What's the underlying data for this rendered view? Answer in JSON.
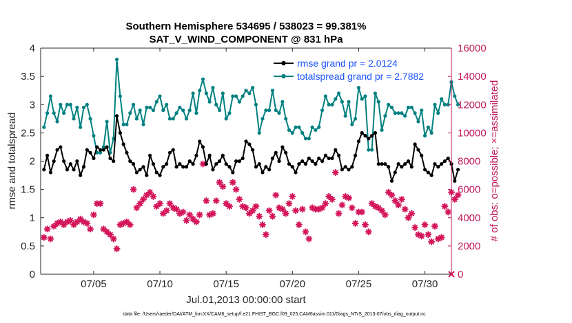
{
  "chart_data": {
    "type": "line",
    "title_line1": "Southern Hemisphere 534695 / 538023 = 99.381%",
    "title_line2": "SAT_V_WIND_COMPONENT @ 831 hPa",
    "xlabel": "Jul.01,2013 00:00:00 start",
    "ylabel_left": "rmse and totalspread",
    "ylabel_right": "# of obs: o=possible; ×=assimilated",
    "footnote": "data file: /Users/raeder/DAI/ATM_forcXX/CAM6_setup/f.e21.FHIST_BGC.f09_025.CAM6assim.011/Diags_NTrS_2013-07/obs_diag_output.nc",
    "x_ticks": [
      {
        "day": 5,
        "label": "07/05"
      },
      {
        "day": 10,
        "label": "07/10"
      },
      {
        "day": 15,
        "label": "07/15"
      },
      {
        "day": 20,
        "label": "07/20"
      },
      {
        "day": 25,
        "label": "07/25"
      },
      {
        "day": 30,
        "label": "07/30"
      }
    ],
    "xlim": [
      1,
      32
    ],
    "ylim_left": [
      0,
      4
    ],
    "yticks_left": [
      "0",
      "0.5",
      "1",
      "1.5",
      "2",
      "2.5",
      "3",
      "3.5",
      "4"
    ],
    "ylim_right": [
      0,
      16000
    ],
    "yticks_right": [
      "0",
      "2000",
      "4000",
      "6000",
      "8000",
      "10000",
      "12000",
      "14000",
      "16000"
    ],
    "colors": {
      "rmse": "#000000",
      "spread": "#008080",
      "obs": "#d4145a",
      "right_axis": "#c2185b",
      "legend_text": "#1a53ff"
    },
    "legend_position": "top-right",
    "series": [
      {
        "name": "rmse grand pr = 2.0124",
        "axis": "left",
        "x_start": 1.25,
        "x_step": 0.25,
        "values": [
          1.85,
          2.1,
          1.8,
          2.0,
          2.2,
          2.25,
          2.0,
          1.85,
          1.95,
          1.85,
          2.0,
          1.75,
          1.9,
          2.2,
          2.15,
          2.05,
          2.25,
          2.2,
          2.2,
          2.25,
          2.05,
          2.0,
          2.8,
          2.5,
          2.3,
          2.15,
          2.0,
          1.95,
          1.8,
          1.85,
          1.9,
          1.75,
          2.1,
          1.95,
          1.8,
          1.75,
          1.9,
          1.95,
          2.15,
          2.2,
          1.9,
          1.95,
          1.9,
          1.9,
          2.0,
          1.95,
          2.1,
          2.35,
          2.25,
          1.95,
          2.1,
          1.85,
          1.95,
          2.0,
          2.1,
          1.95,
          1.9,
          1.8,
          2.0,
          2.0,
          2.05,
          2.35,
          2.3,
          2.2,
          1.9,
          1.95,
          1.8,
          1.9,
          1.85,
          2.05,
          2.15,
          2.0,
          2.25,
          2.15,
          1.95,
          1.9,
          1.8,
          1.95,
          2.0,
          1.95,
          2.05,
          2.0,
          1.95,
          2.05,
          2.0,
          2.1,
          2.05,
          2.05,
          2.2,
          2.1,
          1.85,
          1.9,
          1.85,
          1.9,
          2.1,
          2.35,
          2.5,
          2.45,
          2.4,
          2.45,
          2.5,
          1.95,
          1.95,
          1.95,
          1.9,
          1.65,
          1.8,
          1.95,
          1.9,
          1.95,
          2.0,
          1.9,
          2.3,
          2.2,
          2.1,
          1.85,
          1.8,
          1.75,
          1.95,
          1.9,
          1.95,
          2.0,
          2.05,
          1.95,
          1.65,
          1.85
        ]
      },
      {
        "name": "totalspread grand pr = 2.7882",
        "axis": "left",
        "x_start": 1.25,
        "x_step": 0.25,
        "values": [
          2.6,
          2.85,
          3.15,
          2.85,
          2.7,
          3.0,
          2.85,
          3.0,
          3.0,
          2.75,
          2.95,
          2.6,
          2.95,
          3.0,
          2.75,
          2.45,
          2.15,
          2.15,
          2.25,
          2.7,
          2.15,
          2.4,
          3.8,
          3.15,
          2.65,
          2.65,
          2.85,
          3.0,
          2.75,
          2.9,
          2.65,
          2.95,
          2.95,
          2.9,
          3.05,
          3.15,
          2.9,
          3.0,
          2.75,
          2.75,
          2.85,
          2.95,
          2.9,
          2.75,
          2.9,
          3.2,
          2.85,
          3.25,
          3.45,
          3.2,
          3.05,
          3.3,
          3.0,
          2.9,
          3.2,
          2.75,
          2.85,
          3.15,
          3.15,
          3.05,
          3.15,
          3.25,
          3.2,
          3.3,
          3.0,
          2.5,
          2.75,
          2.9,
          2.9,
          3.25,
          2.9,
          2.85,
          3.05,
          2.75,
          2.55,
          2.5,
          2.6,
          2.6,
          2.5,
          2.4,
          2.4,
          2.6,
          2.55,
          2.6,
          2.9,
          3.15,
          3.0,
          3.0,
          3.1,
          3.2,
          3.05,
          2.8,
          3.05,
          2.65,
          2.75,
          3.3,
          3.1,
          3.15,
          2.2,
          2.2,
          3.2,
          3.05,
          2.55,
          2.8,
          3.0,
          2.95,
          2.85,
          2.85,
          2.85,
          2.8,
          2.95,
          2.95,
          2.85,
          2.7,
          2.9,
          2.45,
          2.6,
          2.5,
          3.0,
          2.85,
          3.1,
          3.0,
          3.0,
          3.4,
          3.15,
          3.0
        ]
      },
      {
        "name": "obs assimilated",
        "axis": "right",
        "x_start": 1.25,
        "x_step": 0.25,
        "values": [
          2600,
          3200,
          2500,
          3400,
          3600,
          3700,
          3500,
          3700,
          3800,
          3500,
          3700,
          3900,
          3700,
          3600,
          3200,
          4200,
          5000,
          5000,
          3200,
          3000,
          2800,
          2500,
          1800,
          3500,
          3600,
          3700,
          3500,
          6000,
          4700,
          5000,
          5300,
          5600,
          5800,
          5500,
          4800,
          5000,
          4300,
          4500,
          5000,
          4700,
          4600,
          4300,
          4400,
          3800,
          4200,
          3900,
          3700,
          4200,
          7800,
          5200,
          4200,
          4300,
          5200,
          6500,
          6200,
          5000,
          4800,
          6500,
          6000,
          5300,
          4800,
          4700,
          4300,
          4500,
          4800,
          4100,
          3500,
          2800,
          4500,
          4100,
          5600,
          4700,
          4600,
          4300,
          5000,
          5500,
          4500,
          3500,
          4600,
          3000,
          2500,
          4700,
          4600,
          4600,
          4700,
          5000,
          5500,
          5300,
          7200,
          4300,
          4900,
          5500,
          5400,
          4700,
          3600,
          4400,
          4400,
          3500,
          3000,
          5000,
          4800,
          4700,
          4500,
          4200,
          5800,
          5600,
          5200,
          4900,
          5300,
          4600,
          4000,
          4300,
          3300,
          2800,
          2700,
          3500,
          2800,
          2300,
          3400,
          2500,
          2600,
          4800,
          4400,
          5800,
          5300,
          5600
        ]
      }
    ]
  }
}
